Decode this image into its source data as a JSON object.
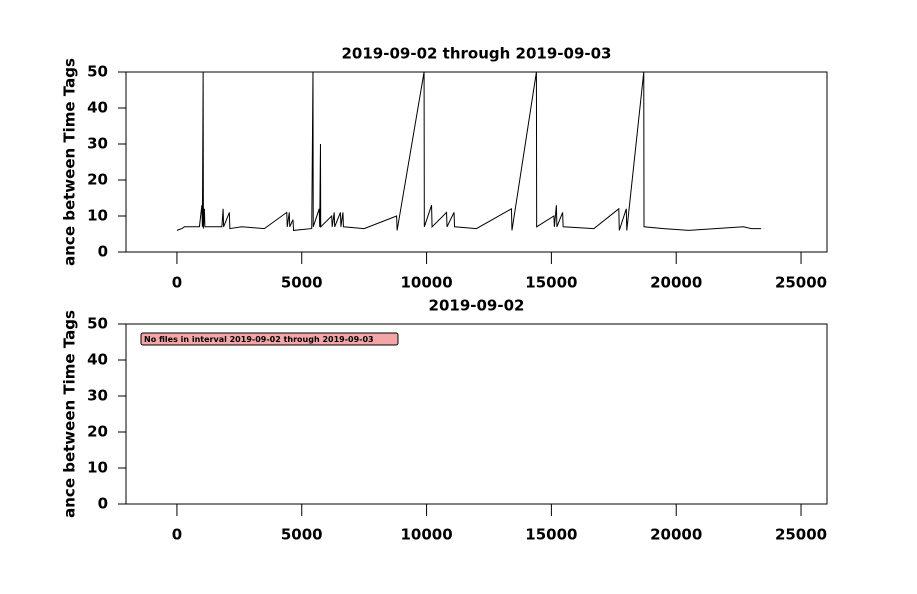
{
  "chart_data": [
    {
      "type": "line",
      "title": "2019-09-02 through 2019-09-03",
      "y_label": "ance between Time Tags",
      "xlim": [
        -2040,
        26040
      ],
      "ylim": [
        0,
        50
      ],
      "xticks": [
        0,
        5000,
        10000,
        15000,
        20000,
        25000
      ],
      "yticks": [
        0,
        10,
        20,
        30,
        40,
        50
      ],
      "series": [
        {
          "color": "#000000",
          "x": [
            0,
            200,
            300,
            900,
            1000,
            1020,
            1050,
            1060,
            1100,
            1120,
            1800,
            1850,
            1870,
            2100,
            2120,
            2600,
            3500,
            4400,
            4420,
            4500,
            4520,
            4650,
            4670,
            5400,
            5450,
            5460,
            5700,
            5720,
            5750,
            5760,
            6200,
            6220,
            6300,
            6320,
            6550,
            6570,
            6650,
            6670,
            7500,
            8800,
            8820,
            9900,
            9910,
            10200,
            10220,
            10800,
            10820,
            11100,
            11120,
            12000,
            13400,
            13420,
            14400,
            14410,
            15100,
            15120,
            15200,
            15220,
            15450,
            15470,
            16700,
            17700,
            17720,
            18000,
            18020,
            18700,
            18710,
            19500,
            20500,
            22700,
            23000,
            23400
          ],
          "values": [
            6,
            6.5,
            7,
            7,
            13,
            7,
            50,
            6.5,
            12,
            7,
            7,
            12,
            7,
            11,
            6.5,
            7,
            6.5,
            11,
            7,
            11,
            7,
            9,
            6,
            6.5,
            50,
            7,
            12,
            7,
            30,
            7,
            10,
            7,
            11,
            7,
            11,
            7,
            11,
            7,
            6.5,
            10,
            6,
            50,
            7,
            13,
            7,
            11,
            7,
            11,
            7,
            6.5,
            12,
            6,
            50,
            7,
            10,
            7,
            13,
            7,
            11,
            7,
            6.5,
            12,
            6,
            12,
            6,
            50,
            7,
            6.5,
            6,
            7,
            6.5,
            6.5
          ]
        }
      ]
    },
    {
      "type": "line",
      "title": "2019-09-02",
      "y_label": "ance between Time Tags",
      "annotation": "No files in interval 2019-09-02 through 2019-09-03",
      "xlim": [
        -2040,
        26040
      ],
      "ylim": [
        0,
        50
      ],
      "xticks": [
        0,
        5000,
        10000,
        15000,
        20000,
        25000
      ],
      "yticks": [
        0,
        10,
        20,
        30,
        40,
        50
      ],
      "series": []
    }
  ]
}
